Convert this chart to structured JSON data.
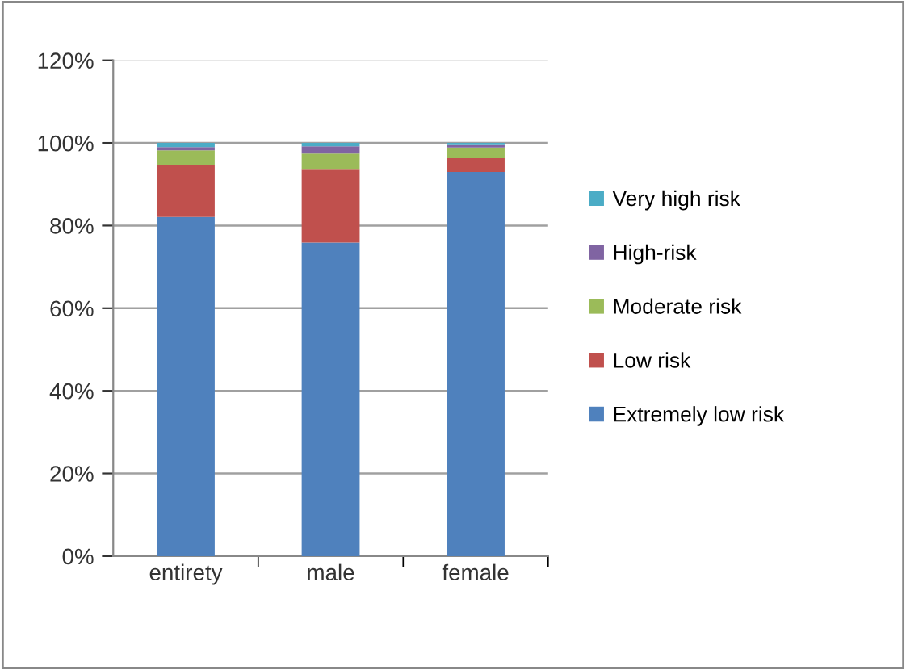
{
  "chart_data": {
    "type": "bar",
    "stacked": true,
    "categories": [
      "entirety",
      "male",
      "female"
    ],
    "series": [
      {
        "name": "Extremely low risk",
        "color": "#4f81bd",
        "values": [
          82.1,
          75.9,
          93.0
        ]
      },
      {
        "name": "Low risk",
        "color": "#c0504d",
        "values": [
          12.6,
          17.8,
          3.3
        ]
      },
      {
        "name": "Moderate risk",
        "color": "#9bbb59",
        "values": [
          3.5,
          3.7,
          2.6
        ]
      },
      {
        "name": "High-risk",
        "color": "#8064a2",
        "values": [
          0.8,
          1.8,
          0.6
        ]
      },
      {
        "name": "Very high risk",
        "color": "#4bacc6",
        "values": [
          1.0,
          0.8,
          0.5
        ]
      }
    ],
    "ylim": [
      0,
      120
    ],
    "yticks": [
      {
        "value": 0,
        "label": "0%"
      },
      {
        "value": 20,
        "label": "20%"
      },
      {
        "value": 40,
        "label": "40%"
      },
      {
        "value": 60,
        "label": "60%"
      },
      {
        "value": 80,
        "label": "80%"
      },
      {
        "value": 100,
        "label": "100%"
      },
      {
        "value": 120,
        "label": "120%"
      }
    ],
    "grid": "y",
    "legend": "right"
  }
}
